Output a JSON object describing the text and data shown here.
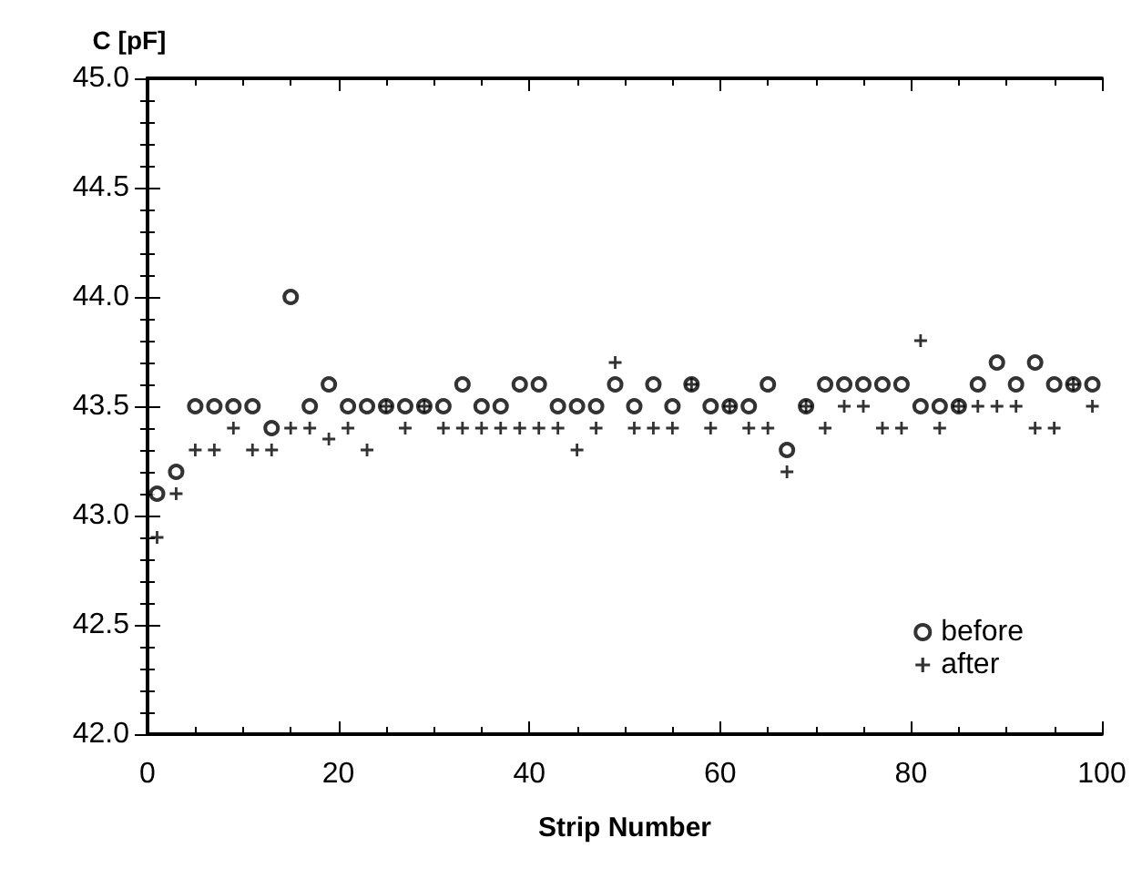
{
  "chart_data": {
    "type": "scatter",
    "xlabel": "Strip Number",
    "ylabel": "C [pF]",
    "xlim": [
      0,
      100
    ],
    "xticks": [
      0,
      20,
      40,
      60,
      80,
      100
    ],
    "ylim": [
      42,
      45
    ],
    "yticks": [
      {
        "value": 42,
        "label": "42.0"
      },
      {
        "value": 42.5,
        "label": "42.5"
      },
      {
        "value": 43,
        "label": "43.0"
      },
      {
        "value": 43.5,
        "label": "43.5"
      },
      {
        "value": 44,
        "label": "44.0"
      },
      {
        "value": 44.5,
        "label": "44.5"
      },
      {
        "value": 45,
        "label": "45.0"
      }
    ],
    "x": [
      1,
      3,
      5,
      7,
      9,
      11,
      13,
      15,
      17,
      19,
      21,
      23,
      25,
      27,
      29,
      31,
      33,
      35,
      37,
      39,
      41,
      43,
      45,
      47,
      49,
      51,
      53,
      55,
      57,
      59,
      61,
      63,
      65,
      67,
      69,
      71,
      73,
      75,
      77,
      79,
      81,
      83,
      85,
      87,
      89,
      91,
      93,
      95,
      97,
      99
    ],
    "legend": "bottom right",
    "grid": false,
    "series": [
      {
        "name": "before",
        "color": "#000000",
        "marker": "circle",
        "values": [
          43.1,
          43.2,
          43.5,
          43.5,
          43.5,
          43.5,
          43.4,
          44.0,
          43.5,
          43.6,
          43.5,
          43.5,
          43.5,
          43.5,
          43.5,
          43.5,
          43.6,
          43.5,
          43.5,
          43.6,
          43.6,
          43.5,
          43.5,
          43.5,
          43.6,
          43.5,
          43.6,
          43.5,
          43.6,
          43.5,
          43.5,
          43.5,
          43.6,
          43.3,
          43.5,
          43.6,
          43.6,
          43.6,
          43.6,
          43.6,
          43.5,
          43.5,
          43.5,
          43.6,
          43.7,
          43.6,
          43.7,
          43.6,
          43.6,
          43.6
        ]
      },
      {
        "name": "after",
        "color": "#000000",
        "marker": "cross",
        "values": [
          42.9,
          43.1,
          43.3,
          43.3,
          43.4,
          43.3,
          43.3,
          43.4,
          43.4,
          43.35,
          43.4,
          43.3,
          43.5,
          43.4,
          43.5,
          43.4,
          43.4,
          43.4,
          43.4,
          43.4,
          43.4,
          43.4,
          43.3,
          43.4,
          43.7,
          43.4,
          43.4,
          43.4,
          43.6,
          43.4,
          43.5,
          43.4,
          43.4,
          43.2,
          43.5,
          43.4,
          43.5,
          43.5,
          43.4,
          43.4,
          43.8,
          43.4,
          43.5,
          43.5,
          43.5,
          43.5,
          43.4,
          43.4,
          43.6,
          43.5
        ]
      }
    ]
  }
}
